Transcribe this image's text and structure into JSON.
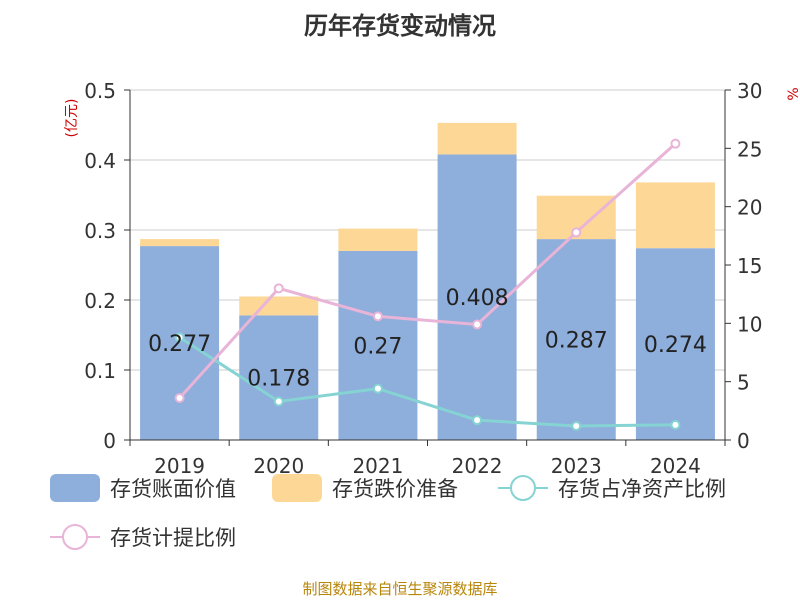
{
  "chart_data": {
    "type": "bar",
    "title": "历年存货变动情况",
    "source": "制图数据来自恒生聚源数据库",
    "ylabel_left": "(亿元)",
    "ylabel_right": "%",
    "categories": [
      "2019",
      "2020",
      "2021",
      "2022",
      "2023",
      "2024"
    ],
    "ylim_left": [
      0,
      0.5
    ],
    "yticks_left": [
      "0",
      "0.1",
      "0.2",
      "0.3",
      "0.4",
      "0.5"
    ],
    "ylim_right": [
      0,
      30
    ],
    "yticks_right": [
      "0",
      "5",
      "10",
      "15",
      "20",
      "25",
      "30"
    ],
    "stacked": true,
    "series": [
      {
        "name": "存货账面价值",
        "kind": "bar",
        "axis": "left",
        "color": "#8eaedb",
        "values": [
          0.277,
          0.178,
          0.27,
          0.408,
          0.287,
          0.274
        ],
        "labels": [
          "0.277",
          "0.178",
          "0.27",
          "0.408",
          "0.287",
          "0.274"
        ]
      },
      {
        "name": "存货跌价准备",
        "kind": "bar",
        "axis": "left",
        "color": "#fdd796",
        "values": [
          0.01,
          0.027,
          0.032,
          0.045,
          0.062,
          0.094
        ]
      },
      {
        "name": "存货占净资产比例",
        "kind": "line",
        "axis": "right",
        "color": "#86d3d3",
        "values": [
          8.8,
          3.3,
          4.4,
          1.7,
          1.2,
          1.3
        ]
      },
      {
        "name": "存货计提比例",
        "kind": "line",
        "axis": "right",
        "color": "#e8b4d8",
        "values": [
          3.6,
          13.0,
          10.6,
          9.9,
          17.8,
          25.4
        ]
      }
    ],
    "grid": true,
    "legend": "bottom"
  }
}
